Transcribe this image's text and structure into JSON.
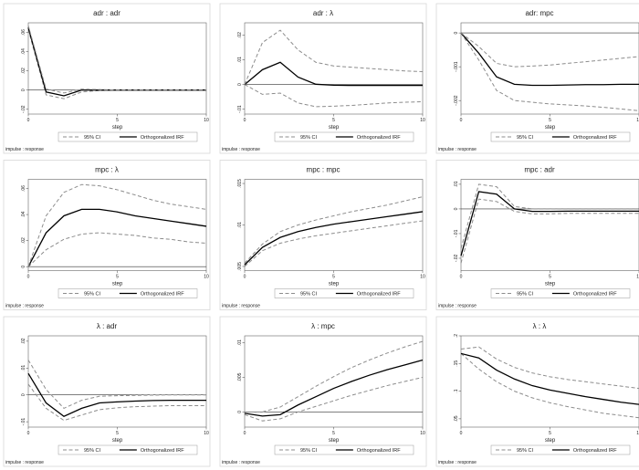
{
  "figure": {
    "ci_color": "#8c8c8c",
    "irf_color": "#000000",
    "zero_line_color": "#333333"
  },
  "chart_data": [
    {
      "type": "line",
      "title": "adr : adr",
      "xlabel": "step",
      "legend": [
        "95% CI",
        "Orthogonalized IRF"
      ],
      "note": "impulse : response",
      "xlim": [
        0,
        10
      ],
      "xticks": [
        "0",
        "5",
        "10"
      ],
      "ylim": [
        -0.025,
        0.07
      ],
      "yticks": [
        -0.02,
        0,
        0.02,
        0.04,
        0.06
      ],
      "ytick_labels": [
        "-.02",
        "0",
        ".02",
        ".04",
        ".06"
      ],
      "x": [
        0,
        1,
        2,
        3,
        4,
        5,
        6,
        7,
        8,
        9,
        10
      ],
      "series": [
        {
          "name": "Lower CI",
          "values": [
            0.063,
            -0.005,
            -0.009,
            -0.002,
            -0.0005,
            0,
            0,
            0,
            0,
            0,
            0
          ]
        },
        {
          "name": "Orthogonalized IRF",
          "values": [
            0.065,
            -0.002,
            -0.006,
            0.0,
            0.0,
            0,
            0,
            0,
            0,
            0,
            0
          ]
        },
        {
          "name": "Upper CI",
          "values": [
            0.067,
            0.001,
            -0.003,
            0.001,
            0.0005,
            0,
            0,
            0,
            0,
            0,
            0
          ]
        }
      ]
    },
    {
      "type": "line",
      "title": "adr : λ",
      "xlabel": "step",
      "legend": [
        "95% CI",
        "Orthogonalized IRF"
      ],
      "note": "impulse : response",
      "xlim": [
        0,
        10
      ],
      "xticks": [
        "0",
        "5",
        "10"
      ],
      "ylim": [
        -0.012,
        0.025
      ],
      "yticks": [
        -0.01,
        0,
        0.01,
        0.02
      ],
      "ytick_labels": [
        "-.01",
        "0",
        ".01",
        ".02"
      ],
      "x": [
        0,
        1,
        2,
        3,
        4,
        5,
        6,
        7,
        8,
        9,
        10
      ],
      "series": [
        {
          "name": "Lower CI",
          "values": [
            0,
            -0.004,
            -0.0035,
            -0.0075,
            -0.009,
            -0.0088,
            -0.0085,
            -0.008,
            -0.0075,
            -0.0072,
            -0.007
          ]
        },
        {
          "name": "Orthogonalized IRF",
          "values": [
            0,
            0.006,
            0.009,
            0.003,
            0.0001,
            -0.0003,
            -0.0004,
            -0.0004,
            -0.0004,
            -0.0004,
            -0.0004
          ]
        },
        {
          "name": "Upper CI",
          "values": [
            0,
            0.017,
            0.022,
            0.014,
            0.009,
            0.0075,
            0.007,
            0.0065,
            0.006,
            0.0055,
            0.0052
          ]
        }
      ]
    },
    {
      "type": "line",
      "title": "adr: mpc",
      "xlabel": "step",
      "legend": [
        "95% CI",
        "Orthogonalized IRF"
      ],
      "note": "impulse : response",
      "xlim": [
        0,
        10
      ],
      "xticks": [
        "0",
        "5",
        "10"
      ],
      "ylim": [
        -0.0024,
        0.0003
      ],
      "yticks": [
        -0.002,
        -0.001,
        0
      ],
      "ytick_labels": [
        "-.002",
        "-.001",
        "0"
      ],
      "x": [
        0,
        1,
        2,
        3,
        4,
        5,
        6,
        7,
        8,
        9,
        10
      ],
      "series": [
        {
          "name": "Lower CI",
          "values": [
            0,
            -0.0008,
            -0.0017,
            -0.002,
            -0.00205,
            -0.0021,
            -0.00213,
            -0.00216,
            -0.0022,
            -0.00225,
            -0.0023
          ]
        },
        {
          "name": "Orthogonalized IRF",
          "values": [
            0,
            -0.0006,
            -0.0013,
            -0.00152,
            -0.00155,
            -0.00155,
            -0.00154,
            -0.00153,
            -0.00153,
            -0.00152,
            -0.00152
          ]
        },
        {
          "name": "Upper CI",
          "values": [
            0,
            -0.0004,
            -0.0009,
            -0.001,
            -0.00098,
            -0.00095,
            -0.0009,
            -0.00085,
            -0.0008,
            -0.00075,
            -0.0007
          ]
        }
      ]
    },
    {
      "type": "line",
      "title": "mpc : λ",
      "xlabel": "step",
      "legend": [
        "95% CI",
        "Orthogonalized IRF"
      ],
      "note": "impulse : response",
      "xlim": [
        0,
        10
      ],
      "xticks": [
        "0",
        "5",
        "10"
      ],
      "ylim": [
        -0.003,
        0.067
      ],
      "yticks": [
        0,
        0.02,
        0.04,
        0.06
      ],
      "ytick_labels": [
        "0",
        ".02",
        ".04",
        ".06"
      ],
      "x": [
        0,
        1,
        2,
        3,
        4,
        5,
        6,
        7,
        8,
        9,
        10
      ],
      "series": [
        {
          "name": "Lower CI",
          "values": [
            0,
            0.013,
            0.021,
            0.025,
            0.026,
            0.025,
            0.024,
            0.022,
            0.021,
            0.019,
            0.018
          ]
        },
        {
          "name": "Orthogonalized IRF",
          "values": [
            0,
            0.026,
            0.039,
            0.044,
            0.044,
            0.042,
            0.039,
            0.037,
            0.035,
            0.033,
            0.031
          ]
        },
        {
          "name": "Upper CI",
          "values": [
            0,
            0.039,
            0.057,
            0.063,
            0.062,
            0.059,
            0.055,
            0.051,
            0.048,
            0.046,
            0.044
          ]
        }
      ]
    },
    {
      "type": "line",
      "title": "mpc : mpc",
      "xlabel": "step",
      "legend": [
        "95% CI",
        "Orthogonalized IRF"
      ],
      "note": "impulse : response",
      "xlim": [
        0,
        10
      ],
      "xticks": [
        "0",
        "5",
        "10"
      ],
      "ylim": [
        0.0045,
        0.0155
      ],
      "yticks": [
        0.005,
        0.01,
        0.015
      ],
      "ytick_labels": [
        ".005",
        ".01",
        ".015"
      ],
      "x": [
        0,
        1,
        2,
        3,
        4,
        5,
        6,
        7,
        8,
        9,
        10
      ],
      "series": [
        {
          "name": "Lower CI",
          "values": [
            0.005,
            0.0069,
            0.0078,
            0.0083,
            0.0087,
            0.009,
            0.0093,
            0.0096,
            0.0099,
            0.0102,
            0.0105
          ]
        },
        {
          "name": "Orthogonalized IRF",
          "values": [
            0.0052,
            0.0073,
            0.0085,
            0.0092,
            0.0097,
            0.0101,
            0.0104,
            0.0107,
            0.011,
            0.0113,
            0.0116
          ]
        },
        {
          "name": "Upper CI",
          "values": [
            0.0054,
            0.0077,
            0.0092,
            0.01,
            0.0106,
            0.0111,
            0.0116,
            0.012,
            0.0124,
            0.0129,
            0.0134
          ]
        }
      ]
    },
    {
      "type": "line",
      "title": "mpc : adr",
      "xlabel": "step",
      "legend": [
        "95% CI",
        "Orthogonalized IRF"
      ],
      "note": "impulse : response",
      "xlim": [
        0,
        10
      ],
      "xticks": [
        "0",
        "5",
        "10"
      ],
      "ylim": [
        -0.025,
        0.012
      ],
      "yticks": [
        -0.02,
        -0.01,
        0,
        0.01
      ],
      "ytick_labels": [
        "-.02",
        "-.01",
        "0",
        ".01"
      ],
      "x": [
        0,
        1,
        2,
        3,
        4,
        5,
        6,
        7,
        8,
        9,
        10
      ],
      "series": [
        {
          "name": "Lower CI",
          "values": [
            -0.022,
            0.004,
            0.003,
            -0.001,
            -0.002,
            -0.002,
            -0.0018,
            -0.0018,
            -0.0018,
            -0.0018,
            -0.0018
          ]
        },
        {
          "name": "Orthogonalized IRF",
          "values": [
            -0.019,
            0.007,
            0.006,
            0.0,
            -0.001,
            -0.001,
            -0.0009,
            -0.0009,
            -0.0009,
            -0.0009,
            -0.0009
          ]
        },
        {
          "name": "Upper CI",
          "values": [
            -0.016,
            0.01,
            0.009,
            0.001,
            0.0,
            0.0,
            0.0,
            0.0,
            0.0,
            0.0,
            0.0
          ]
        }
      ]
    },
    {
      "type": "line",
      "title": "λ : adr",
      "xlabel": "step",
      "legend": [
        "95% CI",
        "Orthogonalized IRF"
      ],
      "note": "impulse : response",
      "xlim": [
        0,
        10
      ],
      "xticks": [
        "0",
        "5",
        "10"
      ],
      "ylim": [
        -0.012,
        0.022
      ],
      "yticks": [
        -0.01,
        0,
        0.01,
        0.02
      ],
      "ytick_labels": [
        "-.01",
        "0",
        ".01",
        ".02"
      ],
      "x": [
        0,
        1,
        2,
        3,
        4,
        5,
        6,
        7,
        8,
        9,
        10
      ],
      "series": [
        {
          "name": "Lower CI",
          "values": [
            0.004,
            -0.005,
            -0.0095,
            -0.0075,
            -0.0055,
            -0.0048,
            -0.0044,
            -0.0042,
            -0.004,
            -0.004,
            -0.004
          ]
        },
        {
          "name": "Orthogonalized IRF",
          "values": [
            0.008,
            -0.003,
            -0.008,
            -0.005,
            -0.003,
            -0.0026,
            -0.0023,
            -0.0021,
            -0.002,
            -0.002,
            -0.002
          ]
        },
        {
          "name": "Upper CI",
          "values": [
            0.013,
            0.002,
            -0.005,
            -0.002,
            -0.0005,
            -0.0003,
            -0.0002,
            -0.0001,
            0.0,
            0.0,
            0.0
          ]
        }
      ]
    },
    {
      "type": "line",
      "title": "λ : mpc",
      "xlabel": "step",
      "legend": [
        "95% CI",
        "Orthogonalized IRF"
      ],
      "note": "impulse : response",
      "xlim": [
        0,
        10
      ],
      "xticks": [
        "0",
        "5",
        "10"
      ],
      "ylim": [
        -0.0022,
        0.011
      ],
      "yticks": [
        0,
        0.005,
        0.01
      ],
      "ytick_labels": [
        "0",
        ".005",
        ".01"
      ],
      "x": [
        0,
        1,
        2,
        3,
        4,
        5,
        6,
        7,
        8,
        9,
        10
      ],
      "series": [
        {
          "name": "Lower CI",
          "values": [
            -0.0004,
            -0.0013,
            -0.001,
            0.0,
            0.0008,
            0.0016,
            0.0024,
            0.0031,
            0.0038,
            0.0044,
            0.005
          ]
        },
        {
          "name": "Orthogonalized IRF",
          "values": [
            -0.0002,
            -0.0006,
            -0.0004,
            0.001,
            0.0022,
            0.0034,
            0.0044,
            0.0053,
            0.0061,
            0.0068,
            0.0075
          ]
        },
        {
          "name": "Upper CI",
          "values": [
            0.0,
            0.0,
            0.0007,
            0.0022,
            0.0037,
            0.0051,
            0.0064,
            0.0075,
            0.0085,
            0.0094,
            0.0102
          ]
        }
      ]
    },
    {
      "type": "line",
      "title": "λ : λ",
      "xlabel": "step",
      "legend": [
        "95% CI",
        "Orthogonalized IRF"
      ],
      "note": "impulse : response",
      "xlim": [
        0,
        10
      ],
      "xticks": [
        "0",
        "5",
        "10"
      ],
      "ylim": [
        0.035,
        0.2
      ],
      "yticks": [
        0.05,
        0.1,
        0.15,
        0.2
      ],
      "ytick_labels": [
        ".05",
        ".1",
        ".15",
        ".2"
      ],
      "x": [
        0,
        1,
        2,
        3,
        4,
        5,
        6,
        7,
        8,
        9,
        10
      ],
      "series": [
        {
          "name": "Lower CI",
          "values": [
            0.168,
            0.14,
            0.117,
            0.1,
            0.088,
            0.079,
            0.072,
            0.066,
            0.06,
            0.056,
            0.052
          ]
        },
        {
          "name": "Orthogonalized IRF",
          "values": [
            0.168,
            0.16,
            0.138,
            0.122,
            0.11,
            0.102,
            0.096,
            0.09,
            0.085,
            0.08,
            0.076
          ]
        },
        {
          "name": "Upper CI",
          "values": [
            0.176,
            0.18,
            0.158,
            0.143,
            0.133,
            0.126,
            0.121,
            0.117,
            0.113,
            0.109,
            0.105
          ]
        }
      ]
    }
  ]
}
